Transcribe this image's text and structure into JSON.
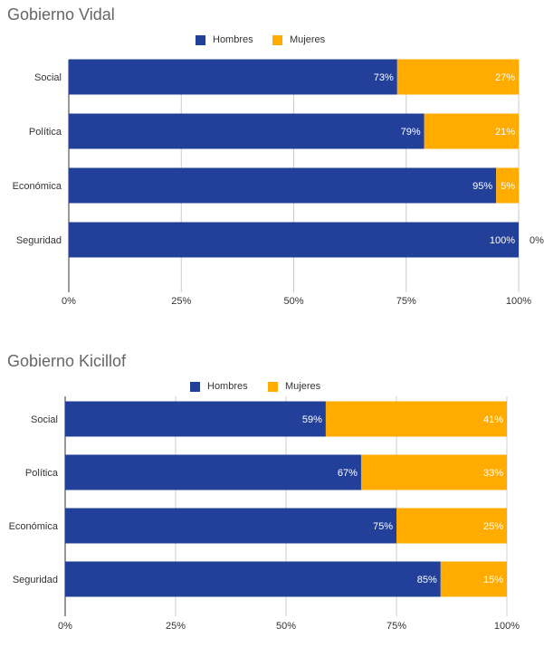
{
  "chart_data": [
    {
      "type": "bar",
      "orientation": "horizontal",
      "stacked": true,
      "title": "Gobierno Vidal",
      "categories": [
        "Social",
        "Política",
        "Económica",
        "Seguridad"
      ],
      "series": [
        {
          "name": "Hombres",
          "color": "#22409a",
          "values": [
            73,
            79,
            95,
            100
          ],
          "labels": [
            "73%",
            "79%",
            "95%",
            "100%"
          ]
        },
        {
          "name": "Mujeres",
          "color": "#ffab00",
          "values": [
            27,
            21,
            5,
            0
          ],
          "labels": [
            "27%",
            "21%",
            "5%",
            "0%"
          ]
        }
      ],
      "xlim": [
        0,
        100
      ],
      "xticks": [
        "0%",
        "25%",
        "50%",
        "75%",
        "100%"
      ],
      "grid": true,
      "legend_position": "top-center"
    },
    {
      "type": "bar",
      "orientation": "horizontal",
      "stacked": true,
      "title": "Gobierno Kicillof",
      "categories": [
        "Social",
        "Política",
        "Económica",
        "Seguridad"
      ],
      "series": [
        {
          "name": "Hombres",
          "color": "#22409a",
          "values": [
            59,
            67,
            75,
            85
          ],
          "labels": [
            "59%",
            "67%",
            "75%",
            "85%"
          ]
        },
        {
          "name": "Mujeres",
          "color": "#ffab00",
          "values": [
            41,
            33,
            25,
            15
          ],
          "labels": [
            "41%",
            "33%",
            "25%",
            "15%"
          ]
        }
      ],
      "xlim": [
        0,
        100
      ],
      "xticks": [
        "0%",
        "25%",
        "50%",
        "75%",
        "100%"
      ],
      "grid": true,
      "legend_position": "top-center"
    }
  ]
}
